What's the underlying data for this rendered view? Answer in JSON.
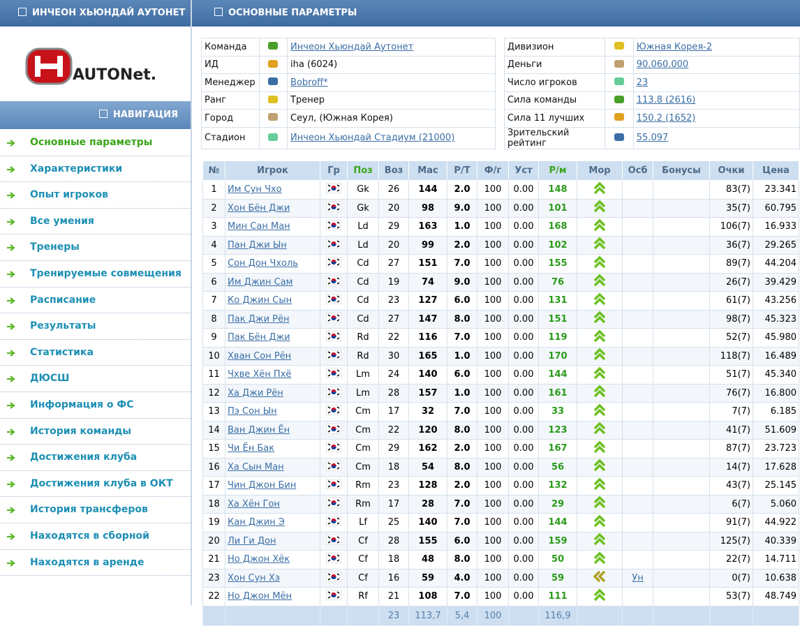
{
  "sidebar": {
    "team_title": "ИНЧЕОН ХЬЮНДАЙ АУТОНЕТ",
    "logo_text": "AUTONet.",
    "nav_title": "НАВИГАЦИЯ",
    "active_index": 0,
    "nav": [
      "Основные параметры",
      "Характеристики",
      "Опыт игроков",
      "Все умения",
      "Тренеры",
      "Тренируемые совмещения",
      "Расписание",
      "Результаты",
      "Статистика",
      "ДЮСШ",
      "Информация о ФС",
      "История команды",
      "Достижения клуба",
      "Достижения клуба в ОКТ",
      "История трансферов",
      "Находятся в сборной",
      "Находятся в аренде"
    ]
  },
  "main": {
    "title": "ОСНОВНЫЕ ПАРАМЕТРЫ",
    "info": {
      "left": [
        {
          "label": "Команда",
          "value": "Инчеон Хьюндай Аутонет",
          "link": true
        },
        {
          "label": "ИД",
          "value": "iha (6024)",
          "link": false
        },
        {
          "label": "Менеджер",
          "value": "Bobroff*",
          "link": true
        },
        {
          "label": "Ранг",
          "value": "Тренер",
          "link": false
        },
        {
          "label": "Город",
          "value": "Сеул, (Южная Корея)",
          "link": false
        },
        {
          "label": "Стадион",
          "value": "Инчеон Хьюндай Стадиум (21000)",
          "link": true
        }
      ],
      "right": [
        {
          "label": "Дивизион",
          "value": "Южная Корея-2",
          "link": true
        },
        {
          "label": "Деньги",
          "value": "90.060.000",
          "link": true
        },
        {
          "label": "Число игроков",
          "value": "23",
          "link": true
        },
        {
          "label": "Сила команды",
          "value": "113.8 (2616)",
          "link": true
        },
        {
          "label": "Сила 11 лучших",
          "value": "150.2 (1652)",
          "link": true
        },
        {
          "label": "Зрительский рейтинг",
          "value": "55.097",
          "link": true
        }
      ]
    },
    "players": {
      "columns": [
        "№",
        "Игрок",
        "Гр",
        "Поз",
        "Воз",
        "Мас",
        "Р/Т",
        "Ф/г",
        "Уст",
        "Р/м",
        "Мор",
        "Осб",
        "Бонусы",
        "Очки",
        "Цена"
      ],
      "rows": [
        {
          "cells": [
            "1",
            "Им Сун Чхо",
            "Gk",
            "26",
            "144",
            "2.0",
            "100",
            "0.00",
            "148",
            "83(7)",
            "23.341"
          ],
          "mor": "up"
        },
        {
          "cells": [
            "2",
            "Хон Бён Джи",
            "Gk",
            "20",
            "98",
            "9.0",
            "100",
            "0.00",
            "101",
            "35(7)",
            "60.795"
          ],
          "mor": "up"
        },
        {
          "cells": [
            "3",
            "Мин Сан Ман",
            "Ld",
            "29",
            "163",
            "1.0",
            "100",
            "0.00",
            "168",
            "106(7)",
            "16.933"
          ],
          "mor": "up"
        },
        {
          "cells": [
            "4",
            "Пан Джи Ын",
            "Ld",
            "20",
            "99",
            "2.0",
            "100",
            "0.00",
            "102",
            "36(7)",
            "29.265"
          ],
          "mor": "up"
        },
        {
          "cells": [
            "5",
            "Сон Дон Чхоль",
            "Cd",
            "27",
            "151",
            "7.0",
            "100",
            "0.00",
            "155",
            "89(7)",
            "44.204"
          ],
          "mor": "up"
        },
        {
          "cells": [
            "6",
            "Им Джин Сам",
            "Cd",
            "19",
            "74",
            "9.0",
            "100",
            "0.00",
            "76",
            "26(7)",
            "39.429"
          ],
          "mor": "up"
        },
        {
          "cells": [
            "7",
            "Ко Джин Сын",
            "Cd",
            "23",
            "127",
            "6.0",
            "100",
            "0.00",
            "131",
            "61(7)",
            "43.256"
          ],
          "mor": "up"
        },
        {
          "cells": [
            "8",
            "Пак Джи Рён",
            "Cd",
            "27",
            "147",
            "8.0",
            "100",
            "0.00",
            "151",
            "98(7)",
            "45.323"
          ],
          "mor": "up"
        },
        {
          "cells": [
            "9",
            "Пак Бён Джи",
            "Rd",
            "22",
            "116",
            "7.0",
            "100",
            "0.00",
            "119",
            "52(7)",
            "45.980"
          ],
          "mor": "up"
        },
        {
          "cells": [
            "10",
            "Хван Сон Рён",
            "Rd",
            "30",
            "165",
            "1.0",
            "100",
            "0.00",
            "170",
            "118(7)",
            "16.489"
          ],
          "mor": "up"
        },
        {
          "cells": [
            "11",
            "Чхве Хён Пхё",
            "Lm",
            "24",
            "140",
            "6.0",
            "100",
            "0.00",
            "144",
            "51(7)",
            "45.340"
          ],
          "mor": "up"
        },
        {
          "cells": [
            "12",
            "Ха Джи Рён",
            "Lm",
            "28",
            "157",
            "1.0",
            "100",
            "0.00",
            "161",
            "76(7)",
            "16.800"
          ],
          "mor": "up"
        },
        {
          "cells": [
            "13",
            "Пэ Сон Ын",
            "Cm",
            "17",
            "32",
            "7.0",
            "100",
            "0.00",
            "33",
            "7(7)",
            "6.185"
          ],
          "mor": "up"
        },
        {
          "cells": [
            "14",
            "Ван Джин Ён",
            "Cm",
            "22",
            "120",
            "8.0",
            "100",
            "0.00",
            "123",
            "41(7)",
            "51.609"
          ],
          "mor": "up"
        },
        {
          "cells": [
            "15",
            "Чи Ён Бак",
            "Cm",
            "29",
            "162",
            "2.0",
            "100",
            "0.00",
            "167",
            "87(7)",
            "23.723"
          ],
          "mor": "up"
        },
        {
          "cells": [
            "16",
            "Ха Сын Ман",
            "Cm",
            "18",
            "54",
            "8.0",
            "100",
            "0.00",
            "56",
            "14(7)",
            "17.628"
          ],
          "mor": "up"
        },
        {
          "cells": [
            "17",
            "Чин Джон Бин",
            "Rm",
            "23",
            "128",
            "2.0",
            "100",
            "0.00",
            "132",
            "43(7)",
            "25.145"
          ],
          "mor": "up"
        },
        {
          "cells": [
            "18",
            "Ха Хён Гон",
            "Rm",
            "17",
            "28",
            "7.0",
            "100",
            "0.00",
            "29",
            "6(7)",
            "5.060"
          ],
          "mor": "up"
        },
        {
          "cells": [
            "19",
            "Кан Джин Э",
            "Lf",
            "25",
            "140",
            "7.0",
            "100",
            "0.00",
            "144",
            "91(7)",
            "44.922"
          ],
          "mor": "up"
        },
        {
          "cells": [
            "20",
            "Ли Ги Дон",
            "Cf",
            "28",
            "155",
            "6.0",
            "100",
            "0.00",
            "159",
            "125(7)",
            "40.339"
          ],
          "mor": "up"
        },
        {
          "cells": [
            "21",
            "Но Джон Хёк",
            "Cf",
            "18",
            "48",
            "8.0",
            "100",
            "0.00",
            "50",
            "22(7)",
            "14.711"
          ],
          "mor": "up"
        },
        {
          "cells": [
            "23",
            "Хон Сун Хэ",
            "Cf",
            "16",
            "59",
            "4.0",
            "100",
            "0.00",
            "59",
            "0(7)",
            "10.638"
          ],
          "mor": "left",
          "osb": "Ун"
        },
        {
          "cells": [
            "22",
            "Но Джон Мён",
            "Rf",
            "21",
            "108",
            "7.0",
            "100",
            "0.00",
            "111",
            "53(7)",
            "48.749"
          ],
          "mor": "up"
        }
      ],
      "totals": {
        "age": "23",
        "mas": "113,7",
        "rt": "5,4",
        "fg": "100",
        "rm": "116,9"
      }
    }
  }
}
